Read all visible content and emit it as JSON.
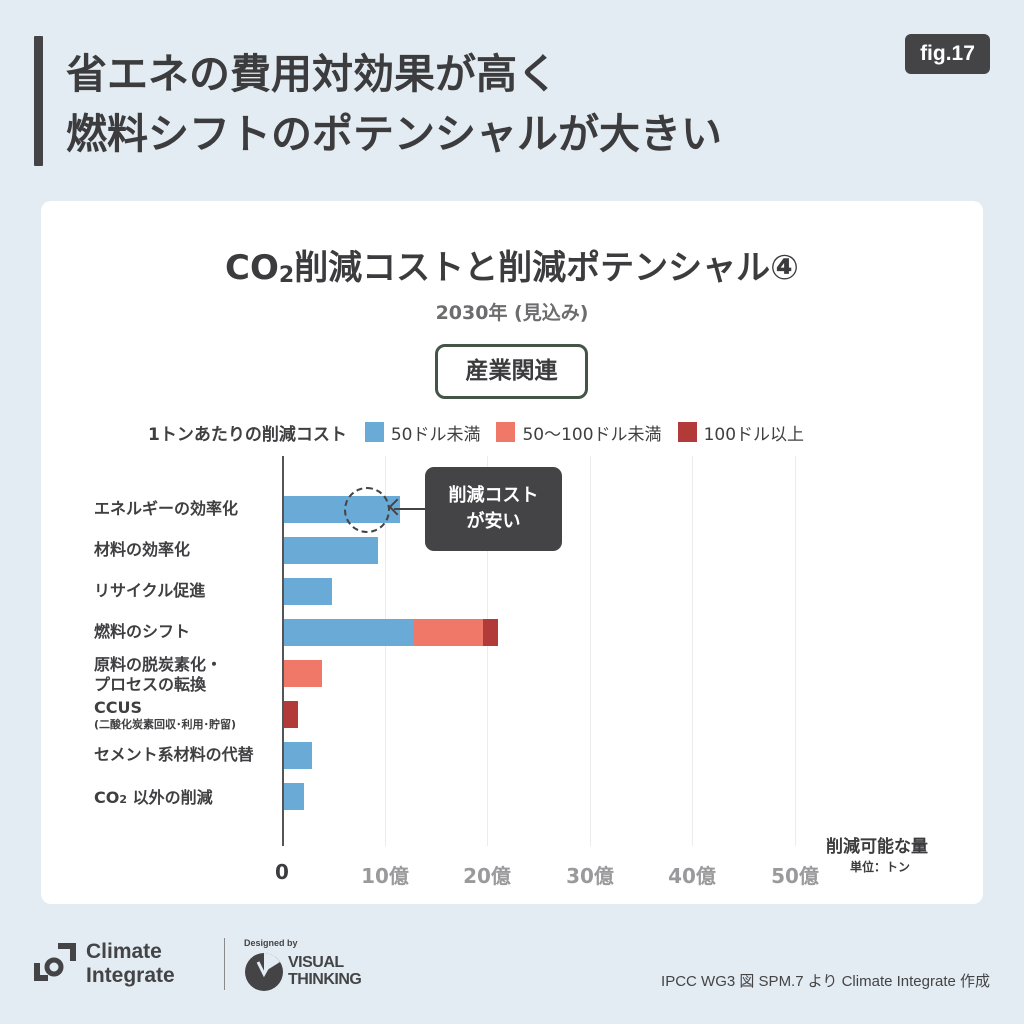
{
  "header": {
    "headline_line1": "省エネの費用対効果が高く",
    "headline_line2": "燃料シフトのポテンシャルが大きい",
    "fig_label": "fig.17"
  },
  "chart": {
    "title_prefix": "CO",
    "title_sub": "2",
    "title_rest": "削減コストと削減ポテンシャル④",
    "subtitle": "2030年 (見込み)",
    "category_tag": "産業関連",
    "legend_title": "1トンあたりの削減コスト",
    "legend": [
      {
        "label": "50ドル未満",
        "color": "#6aaad6"
      },
      {
        "label": "50〜100ドル未満",
        "color": "#ef7868"
      },
      {
        "label": "100ドル以上",
        "color": "#b23a38"
      }
    ],
    "x_ticks": [
      "0",
      "10億",
      "20億",
      "30億",
      "40億",
      "50億"
    ],
    "x_axis_title": "削減可能な量",
    "x_axis_unit": "単位：トン",
    "callout_line1": "削減コスト",
    "callout_line2": "が安い",
    "rows": [
      {
        "label": "エネルギーの効率化"
      },
      {
        "label": "材料の効率化"
      },
      {
        "label": "リサイクル促進"
      },
      {
        "label": "燃料のシフト"
      },
      {
        "label_line1": "原料の脱炭素化・",
        "label_line2": "プロセスの転換"
      },
      {
        "label_line1": "CCUS",
        "label_line2": "(二酸化炭素回収･利用･貯留)"
      },
      {
        "label": "セメント系材料の代替"
      },
      {
        "label_prefix": "CO",
        "label_sub": "2",
        "label_rest": " 以外の削減"
      }
    ]
  },
  "chart_data": {
    "type": "bar",
    "orientation": "horizontal",
    "stacked": true,
    "title": "CO2削減コストと削減ポテンシャル④",
    "subtitle": "2030年 (見込み) — 産業関連",
    "categories": [
      "エネルギーの効率化",
      "材料の効率化",
      "リサイクル促進",
      "燃料のシフト",
      "原料の脱炭素化・プロセスの転換",
      "CCUS (二酸化炭素回収･利用･貯留)",
      "セメント系材料の代替",
      "CO2 以外の削減"
    ],
    "series": [
      {
        "name": "50ドル未満",
        "color": "#6aaad6",
        "values": [
          11.4,
          9.3,
          4.8,
          12.8,
          0,
          0,
          2.8,
          2.0
        ]
      },
      {
        "name": "50〜100ドル未満",
        "color": "#ef7868",
        "values": [
          0,
          0,
          0,
          6.7,
          3.8,
          0,
          0,
          0
        ]
      },
      {
        "name": "100ドル以上",
        "color": "#b23a38",
        "values": [
          0,
          0,
          0,
          1.5,
          0,
          1.5,
          0,
          0
        ]
      }
    ],
    "xlabel": "削減可能な量 (単位：トン, 億)",
    "ylabel": "",
    "legend_title": "1トンあたりの削減コスト",
    "xlim": [
      0,
      50
    ],
    "x_ticks": [
      "0",
      "10億",
      "20億",
      "30億",
      "40億",
      "50億"
    ],
    "grid": true,
    "legend_position": "top",
    "annotations": [
      "削減コストが安い (エネルギーの効率化)"
    ]
  },
  "footer": {
    "logo_line1": "Climate",
    "logo_line2": "Integrate",
    "designed_by": "Designed by",
    "vt_line1": "VISUAL",
    "vt_line2": "THINKING",
    "source": "IPCC WG3 図 SPM.7 より Climate Integrate 作成"
  }
}
